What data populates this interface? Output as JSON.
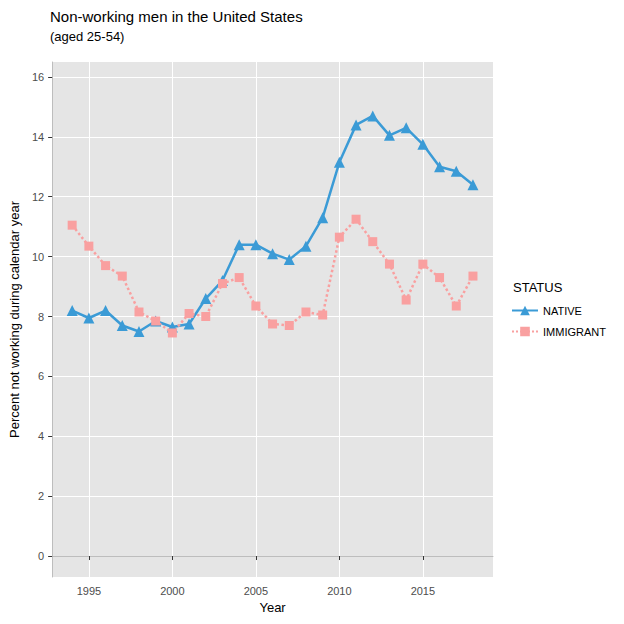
{
  "chart_data": {
    "type": "line",
    "title": "Non-working men in the United States",
    "subtitle": "(aged 25-54)",
    "x_label": "Year",
    "y_label": "Percent not working during calendar year",
    "legend_title": "STATUS",
    "legend": "right",
    "grid": true,
    "x": [
      1994,
      1995,
      1996,
      1997,
      1998,
      1999,
      2000,
      2001,
      2002,
      2003,
      2004,
      2005,
      2006,
      2007,
      2008,
      2009,
      2010,
      2011,
      2012,
      2013,
      2014,
      2015,
      2016,
      2017,
      2018
    ],
    "xlim": [
      1992.8,
      2019.2
    ],
    "xticks": [
      1995,
      2000,
      2005,
      2010,
      2015
    ],
    "ylim": [
      -0.7,
      16.5
    ],
    "yticks": [
      0,
      2,
      4,
      6,
      8,
      10,
      12,
      14,
      16
    ],
    "series": [
      {
        "name": "NATIVE",
        "color": "#3b9bd6",
        "marker": "triangle",
        "line_style": "solid",
        "values": [
          8.2,
          7.95,
          8.2,
          7.7,
          7.5,
          7.85,
          7.65,
          7.75,
          8.6,
          9.2,
          10.4,
          10.4,
          10.1,
          9.9,
          10.35,
          11.3,
          13.15,
          14.4,
          14.7,
          14.05,
          14.3,
          13.75,
          13.0,
          12.85,
          12.4
        ]
      },
      {
        "name": "IMMIGRANT",
        "color": "#f9a0a0",
        "marker": "square",
        "line_style": "dotted",
        "values": [
          11.05,
          10.35,
          9.7,
          9.35,
          8.15,
          7.85,
          7.45,
          8.1,
          8.0,
          9.1,
          9.3,
          8.35,
          7.75,
          7.7,
          8.15,
          8.05,
          10.65,
          11.25,
          10.5,
          9.75,
          8.55,
          9.75,
          9.3,
          8.35,
          9.35
        ]
      }
    ]
  }
}
